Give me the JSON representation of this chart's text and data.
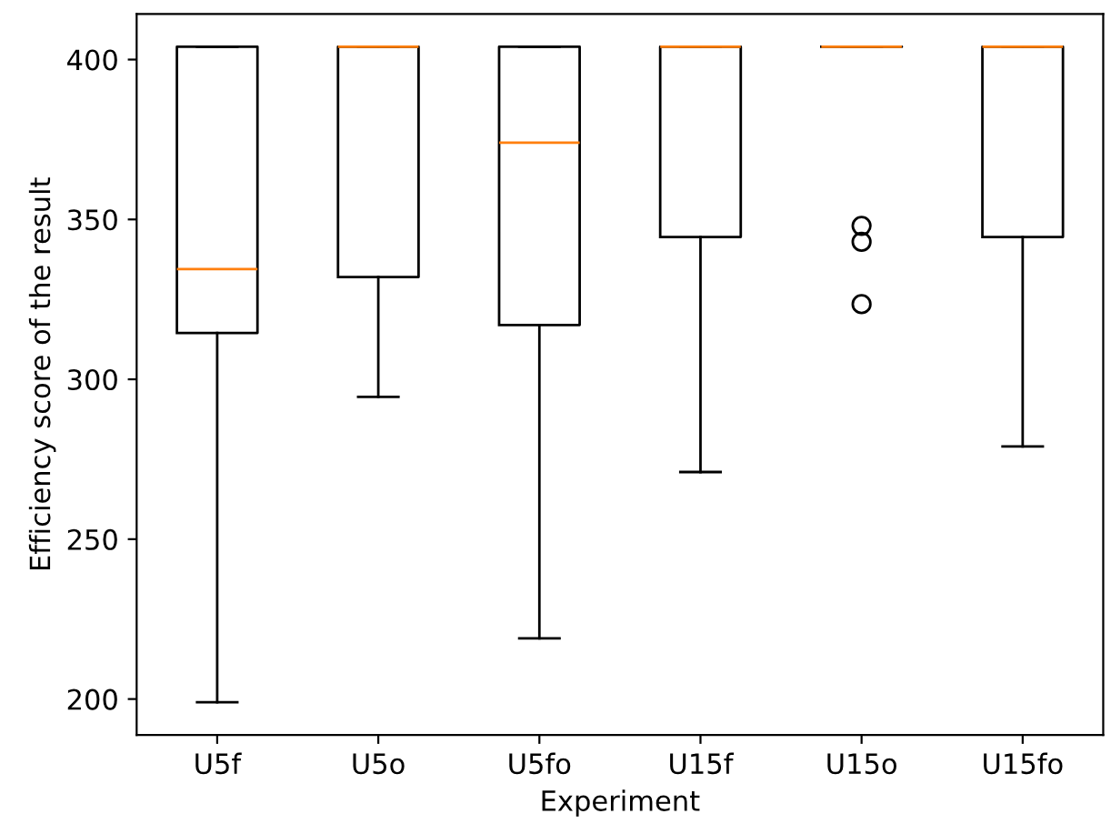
{
  "chart_data": {
    "type": "box",
    "xlabel": "Experiment",
    "ylabel": "Efficiency score of the result",
    "categories": [
      "U5f",
      "U5o",
      "U5fo",
      "U15f",
      "U15o",
      "U15fo"
    ],
    "boxes": [
      {
        "low": 199,
        "q1": 314.5,
        "median": 334.5,
        "q3": 404,
        "high": 404
      },
      {
        "low": 294.5,
        "q1": 332,
        "median": 404,
        "q3": 404,
        "high": 404
      },
      {
        "low": 219,
        "q1": 317,
        "median": 374,
        "q3": 404,
        "high": 404
      },
      {
        "low": 271,
        "q1": 344.5,
        "median": 404,
        "q3": 404,
        "high": 404
      },
      {
        "low": 404,
        "q1": 404,
        "median": 404,
        "q3": 404,
        "high": 404,
        "outliers": [
          348,
          343,
          323.5
        ]
      },
      {
        "low": 279,
        "q1": 344.5,
        "median": 404,
        "q3": 404,
        "high": 404
      }
    ],
    "color": "#000000",
    "ylim": [
      188.75,
      414.25
    ],
    "yticks": [
      200,
      250,
      300,
      350,
      400
    ],
    "grid": false
  }
}
